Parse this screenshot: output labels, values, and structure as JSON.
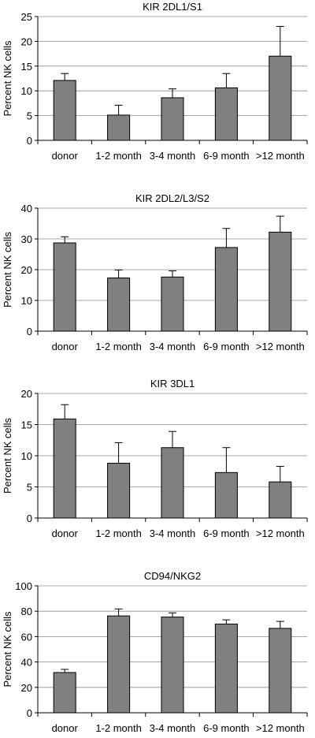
{
  "chart_data": [
    {
      "type": "bar",
      "title": "KIR 2DL1/S1",
      "ylabel": "Percent NK cells",
      "categories": [
        "donor",
        "1-2 month",
        "3-4 month",
        "6-9 month",
        ">12 month"
      ],
      "values": [
        12.1,
        5.1,
        8.6,
        10.6,
        17.0
      ],
      "errors": [
        1.4,
        2.0,
        1.8,
        2.9,
        6.0
      ],
      "ylim": [
        0,
        25
      ],
      "yticks": [
        0,
        5,
        10,
        15,
        20,
        25
      ],
      "grid": true,
      "bar_color": "#808080"
    },
    {
      "type": "bar",
      "title": "KIR 2DL2/L3/S2",
      "ylabel": "Percent NK cells",
      "categories": [
        "donor",
        "1-2 month",
        "3-4 month",
        "6-9 month",
        ">12 month"
      ],
      "values": [
        28.7,
        17.3,
        17.6,
        27.2,
        32.2
      ],
      "errors": [
        2.0,
        2.6,
        2.0,
        6.2,
        5.2
      ],
      "ylim": [
        0,
        40
      ],
      "yticks": [
        0,
        10,
        20,
        30,
        40
      ],
      "grid": true,
      "bar_color": "#808080"
    },
    {
      "type": "bar",
      "title": "KIR 3DL1",
      "ylabel": "Percent NK cells",
      "categories": [
        "donor",
        "1-2 month",
        "3-4 month",
        "6-9 month",
        ">12 month"
      ],
      "values": [
        15.9,
        8.8,
        11.3,
        7.3,
        5.8
      ],
      "errors": [
        2.3,
        3.3,
        2.6,
        4.0,
        2.5
      ],
      "ylim": [
        0,
        20
      ],
      "yticks": [
        0,
        5,
        10,
        15,
        20
      ],
      "grid": true,
      "bar_color": "#808080"
    },
    {
      "type": "bar",
      "title": "CD94/NKG2",
      "ylabel": "Percent NK cells",
      "categories": [
        "donor",
        "1-2 month",
        "3-4 month",
        "6-9 month",
        ">12 month"
      ],
      "values": [
        31.7,
        76.3,
        75.4,
        69.9,
        66.5
      ],
      "errors": [
        2.5,
        5.5,
        3.3,
        3.3,
        5.5
      ],
      "ylim": [
        0,
        100
      ],
      "yticks": [
        0,
        20,
        40,
        60,
        80,
        100
      ],
      "grid": true,
      "bar_color": "#808080"
    }
  ]
}
